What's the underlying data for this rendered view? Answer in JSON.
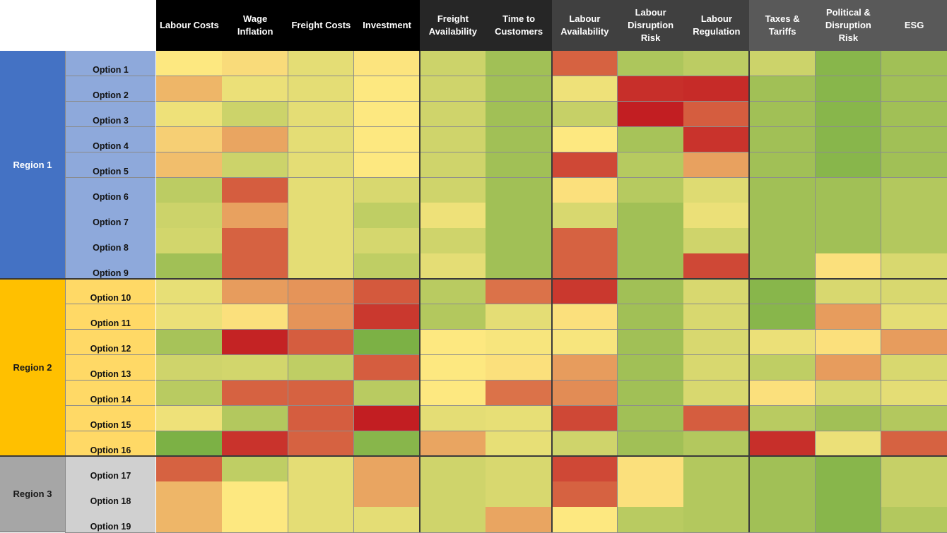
{
  "chart_data": {
    "type": "heatmap",
    "columns": [
      "Labour Costs",
      "Wage Inflation",
      "Freight Costs",
      "Investment",
      "Freight Availability",
      "Time to Customers",
      "Labour Availability",
      "Labour Disruption Risk",
      "Labour Regulation",
      "Taxes & Tariffs",
      "Political & Disruption Risk",
      "ESG"
    ],
    "column_groups": [
      {
        "columns": [
          0,
          1,
          2,
          3
        ],
        "color": "#000000"
      },
      {
        "columns": [
          4,
          5
        ],
        "color": "#262626"
      },
      {
        "columns": [
          6,
          7,
          8
        ],
        "color": "#404040"
      },
      {
        "columns": [
          9,
          10,
          11
        ],
        "color": "#595959"
      }
    ],
    "regions": [
      {
        "name": "Region 1",
        "rows": [
          0,
          1,
          2,
          3,
          4,
          5,
          6,
          7,
          8
        ],
        "color": "#4472C4",
        "option_color": "#8EA9DB",
        "text_color": "#ffffff"
      },
      {
        "name": "Region 2",
        "rows": [
          9,
          10,
          11,
          12,
          13,
          14,
          15
        ],
        "color": "#FFC000",
        "option_color": "#FFD966",
        "text_color": "#1a1a1a"
      },
      {
        "name": "Region 3",
        "rows": [
          16,
          17,
          18
        ],
        "color": "#A6A6A6",
        "option_color": "#D0D0D0",
        "text_color": "#1a1a1a"
      }
    ],
    "rows": [
      "Option 1",
      "Option 2",
      "Option 3",
      "Option 4",
      "Option 5",
      "Option 6",
      "Option 7",
      "Option 8",
      "Option 9",
      "Option 10",
      "Option 11",
      "Option 12",
      "Option 13",
      "Option 14",
      "Option 15",
      "Option 16",
      "Option 17",
      "Option 18",
      "Option 19"
    ],
    "color_scale": {
      "low": "#C0161E",
      "mid": "#FDE880",
      "high": "#63A63A"
    },
    "values": [
      [
        0.5,
        0.47,
        0.58,
        0.49,
        0.66,
        0.8,
        0.18,
        0.76,
        0.71,
        0.66,
        0.88,
        0.8
      ],
      [
        0.38,
        0.56,
        0.58,
        0.5,
        0.65,
        0.8,
        0.55,
        0.06,
        0.05,
        0.8,
        0.88,
        0.8
      ],
      [
        0.55,
        0.66,
        0.58,
        0.5,
        0.65,
        0.8,
        0.68,
        0.02,
        0.17,
        0.8,
        0.88,
        0.8
      ],
      [
        0.44,
        0.34,
        0.58,
        0.5,
        0.65,
        0.8,
        0.5,
        0.78,
        0.07,
        0.8,
        0.88,
        0.8
      ],
      [
        0.4,
        0.66,
        0.58,
        0.5,
        0.65,
        0.8,
        0.12,
        0.73,
        0.33,
        0.8,
        0.88,
        0.8
      ],
      [
        0.71,
        0.17,
        0.58,
        0.62,
        0.65,
        0.8,
        0.48,
        0.73,
        0.6,
        0.8,
        0.8,
        0.74
      ],
      [
        0.66,
        0.33,
        0.58,
        0.7,
        0.55,
        0.8,
        0.62,
        0.8,
        0.56,
        0.8,
        0.8,
        0.74
      ],
      [
        0.64,
        0.18,
        0.58,
        0.63,
        0.65,
        0.8,
        0.18,
        0.8,
        0.65,
        0.8,
        0.8,
        0.74
      ],
      [
        0.8,
        0.18,
        0.58,
        0.7,
        0.58,
        0.8,
        0.18,
        0.8,
        0.12,
        0.8,
        0.48,
        0.62
      ],
      [
        0.57,
        0.32,
        0.3,
        0.16,
        0.72,
        0.22,
        0.08,
        0.8,
        0.62,
        0.88,
        0.62,
        0.62
      ],
      [
        0.56,
        0.48,
        0.3,
        0.08,
        0.74,
        0.58,
        0.48,
        0.8,
        0.62,
        0.88,
        0.32,
        0.58
      ],
      [
        0.78,
        0.03,
        0.17,
        0.92,
        0.5,
        0.52,
        0.52,
        0.8,
        0.62,
        0.56,
        0.48,
        0.32
      ],
      [
        0.65,
        0.64,
        0.7,
        0.17,
        0.5,
        0.48,
        0.32,
        0.8,
        0.62,
        0.7,
        0.32,
        0.62
      ],
      [
        0.72,
        0.18,
        0.18,
        0.72,
        0.5,
        0.22,
        0.28,
        0.8,
        0.62,
        0.48,
        0.62,
        0.58
      ],
      [
        0.55,
        0.74,
        0.17,
        0.02,
        0.58,
        0.57,
        0.12,
        0.8,
        0.17,
        0.72,
        0.8,
        0.74
      ],
      [
        0.92,
        0.07,
        0.18,
        0.88,
        0.34,
        0.57,
        0.65,
        0.8,
        0.74,
        0.06,
        0.56,
        0.18
      ],
      [
        0.18,
        0.7,
        0.58,
        0.34,
        0.65,
        0.62,
        0.12,
        0.48,
        0.74,
        0.8,
        0.88,
        0.68
      ],
      [
        0.38,
        0.5,
        0.58,
        0.34,
        0.65,
        0.62,
        0.18,
        0.48,
        0.74,
        0.8,
        0.88,
        0.68
      ],
      [
        0.38,
        0.5,
        0.58,
        0.58,
        0.65,
        0.34,
        0.5,
        0.72,
        0.74,
        0.8,
        0.88,
        0.74
      ]
    ]
  }
}
